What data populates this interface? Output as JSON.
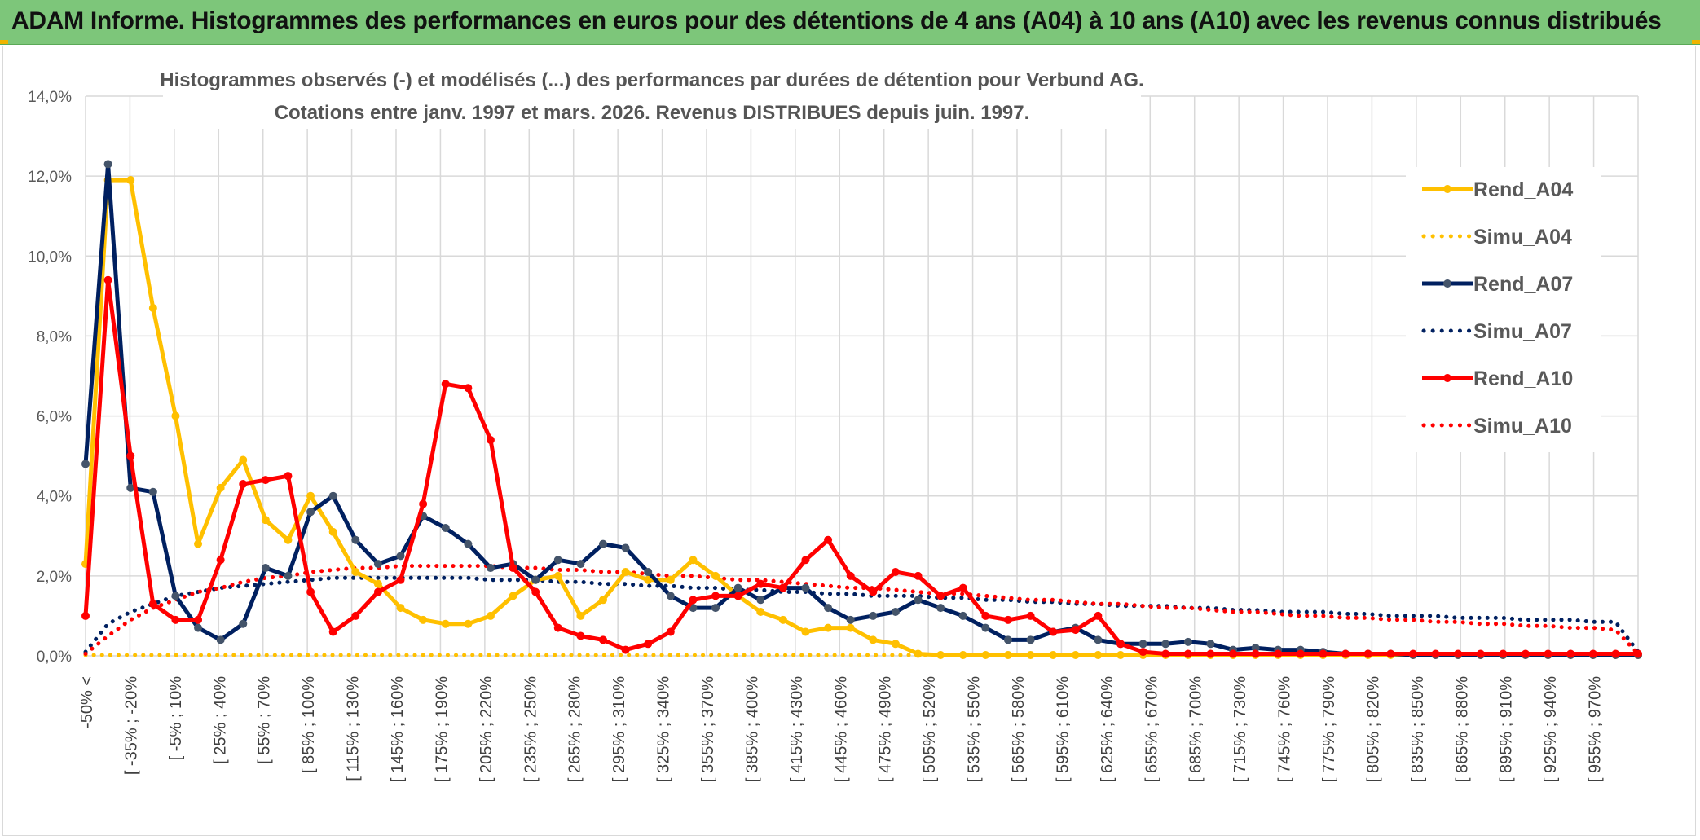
{
  "header": {
    "title": "ADAM Informe. Histogrammes des performances en euros pour des détentions de 4 ans (A04) à 10 ans (A10) avec les revenus connus distribués"
  },
  "chart_data": {
    "type": "line",
    "title": "Histogrammes observés (-) et modélisés (...) des performances par durées de détention pour Verbund AG.",
    "subtitle": "Cotations entre janv. 1997 et mars. 2026. Revenus DISTRIBUES depuis juin. 1997.",
    "xlabel": "",
    "ylabel": "",
    "ylim": [
      0,
      14
    ],
    "y_ticks": [
      "0,0%",
      "2,0%",
      "4,0%",
      "6,0%",
      "8,0%",
      "10,0%",
      "12,0%",
      "14,0%"
    ],
    "x_tick_labels": [
      "-50% <",
      "[ -35% ; -20%",
      "[ -5% ; 10%",
      "[ 25% ; 40%",
      "[ 55% ; 70%",
      "[ 85% ; 100%",
      "[ 115% ; 130%",
      "[ 145% ; 160%",
      "[ 175% ; 190%",
      "[ 205% ; 220%",
      "[ 235% ; 250%",
      "[ 265% ; 280%",
      "[ 295% ; 310%",
      "[ 325% ; 340%",
      "[ 355% ; 370%",
      "[ 385% ; 400%",
      "[ 415% ; 430%",
      "[ 445% ; 460%",
      "[ 475% ; 490%",
      "[ 505% ; 520%",
      "[ 535% ; 550%",
      "[ 565% ; 580%",
      "[ 595% ; 610%",
      "[ 625% ; 640%",
      "[ 655% ; 670%",
      "[ 685% ; 700%",
      "[ 715% ; 730%",
      "[ 745% ; 760%",
      "[ 775% ; 790%",
      "[ 805% ; 820%",
      "[ 835% ; 850%",
      "[ 865% ; 880%",
      "[ 895% ; 910%",
      "[ 925% ; 940%",
      "[ 955% ; 970%"
    ],
    "legend_position": "right",
    "series": [
      {
        "name": "Rend_A04",
        "style": "solid",
        "color": "#ffc000",
        "values": [
          2.3,
          11.9,
          11.9,
          8.7,
          6.0,
          2.8,
          4.2,
          4.9,
          3.4,
          2.9,
          4.0,
          3.1,
          2.1,
          1.8,
          1.2,
          0.9,
          0.8,
          0.8,
          1.0,
          1.5,
          1.9,
          2.0,
          1.0,
          1.4,
          2.1,
          1.9,
          1.9,
          2.4,
          2.0,
          1.5,
          1.1,
          0.9,
          0.6,
          0.7,
          0.7,
          0.4,
          0.3,
          0.05,
          0.02,
          0.02,
          0.02,
          0.02,
          0.02,
          0.02,
          0.02,
          0.02,
          0.02,
          0.02,
          0.02,
          0.02,
          0.02,
          0.02,
          0.02,
          0.02,
          0.02,
          0.02,
          0.02,
          0.02,
          0.02,
          0.02,
          0.02,
          0.02,
          0.02,
          0.02,
          0.02,
          0.02,
          0.02,
          0.02,
          0.02,
          0.02
        ]
      },
      {
        "name": "Simu_A04",
        "style": "dotted",
        "color": "#ffc000",
        "values": [
          0.02,
          0.02,
          0.02,
          0.02,
          0.02,
          0.02,
          0.02,
          0.02,
          0.02,
          0.02,
          0.02,
          0.02,
          0.02,
          0.02,
          0.02,
          0.02,
          0.02,
          0.02,
          0.02,
          0.02,
          0.02,
          0.02,
          0.02,
          0.02,
          0.02,
          0.02,
          0.02,
          0.02,
          0.02,
          0.02,
          0.02,
          0.02,
          0.02,
          0.02,
          0.02,
          0.02,
          0.02,
          0.02,
          0.02,
          0.02,
          0.02,
          0.02,
          0.02,
          0.02,
          0.02,
          0.02,
          0.02,
          0.02,
          0.02,
          0.02,
          0.02,
          0.02,
          0.02,
          0.02,
          0.02,
          0.02,
          0.02,
          0.02,
          0.02,
          0.02,
          0.02,
          0.02,
          0.02,
          0.02,
          0.02,
          0.02,
          0.02,
          0.02,
          0.02,
          0.02
        ]
      },
      {
        "name": "Rend_A07",
        "style": "solid",
        "color": "#002060",
        "values": [
          4.8,
          12.3,
          4.2,
          4.1,
          1.5,
          0.7,
          0.4,
          0.8,
          2.2,
          2.0,
          3.6,
          4.0,
          2.9,
          2.3,
          2.5,
          3.5,
          3.2,
          2.8,
          2.2,
          2.3,
          1.9,
          2.4,
          2.3,
          2.8,
          2.7,
          2.1,
          1.5,
          1.2,
          1.2,
          1.7,
          1.4,
          1.7,
          1.7,
          1.2,
          0.9,
          1.0,
          1.1,
          1.4,
          1.2,
          1.0,
          0.7,
          0.4,
          0.4,
          0.6,
          0.7,
          0.4,
          0.3,
          0.3,
          0.3,
          0.35,
          0.3,
          0.15,
          0.2,
          0.15,
          0.15,
          0.1,
          0.05,
          0.05,
          0.05,
          0.02,
          0.02,
          0.02,
          0.02,
          0.02,
          0.02,
          0.02,
          0.02,
          0.02,
          0.02,
          0.02
        ]
      },
      {
        "name": "Simu_A07",
        "style": "dotted",
        "color": "#002060",
        "values": [
          0.1,
          0.8,
          1.1,
          1.3,
          1.5,
          1.6,
          1.7,
          1.75,
          1.8,
          1.85,
          1.9,
          1.95,
          1.95,
          1.95,
          1.95,
          1.95,
          1.95,
          1.95,
          1.9,
          1.9,
          1.9,
          1.85,
          1.85,
          1.8,
          1.8,
          1.75,
          1.75,
          1.7,
          1.7,
          1.65,
          1.65,
          1.6,
          1.6,
          1.55,
          1.55,
          1.5,
          1.5,
          1.5,
          1.45,
          1.45,
          1.4,
          1.4,
          1.35,
          1.35,
          1.3,
          1.3,
          1.25,
          1.25,
          1.25,
          1.2,
          1.2,
          1.15,
          1.15,
          1.1,
          1.1,
          1.1,
          1.05,
          1.05,
          1.0,
          1.0,
          1.0,
          0.95,
          0.95,
          0.95,
          0.9,
          0.9,
          0.9,
          0.85,
          0.85,
          0.1
        ]
      },
      {
        "name": "Rend_A10",
        "style": "solid",
        "color": "#ff0000",
        "values": [
          1.0,
          9.4,
          5.0,
          1.3,
          0.9,
          0.9,
          2.4,
          4.3,
          4.4,
          4.5,
          1.6,
          0.6,
          1.0,
          1.6,
          1.9,
          3.8,
          6.8,
          6.7,
          5.4,
          2.2,
          1.6,
          0.7,
          0.5,
          0.4,
          0.15,
          0.3,
          0.6,
          1.4,
          1.5,
          1.5,
          1.8,
          1.7,
          2.4,
          2.9,
          2.0,
          1.6,
          2.1,
          2.0,
          1.5,
          1.7,
          1.0,
          0.9,
          1.0,
          0.6,
          0.65,
          1.0,
          0.3,
          0.1,
          0.05,
          0.05,
          0.05,
          0.05,
          0.05,
          0.05,
          0.05,
          0.05,
          0.05,
          0.05,
          0.05,
          0.05,
          0.05,
          0.05,
          0.05,
          0.05,
          0.05,
          0.05,
          0.05,
          0.05,
          0.05,
          0.05
        ]
      },
      {
        "name": "Simu_A10",
        "style": "dotted",
        "color": "#ff0000",
        "values": [
          0.05,
          0.5,
          0.9,
          1.2,
          1.4,
          1.6,
          1.7,
          1.85,
          1.95,
          2.0,
          2.1,
          2.15,
          2.2,
          2.2,
          2.25,
          2.25,
          2.25,
          2.25,
          2.25,
          2.2,
          2.2,
          2.15,
          2.15,
          2.1,
          2.1,
          2.05,
          2.0,
          2.0,
          1.95,
          1.9,
          1.9,
          1.85,
          1.8,
          1.75,
          1.7,
          1.7,
          1.65,
          1.6,
          1.55,
          1.55,
          1.5,
          1.45,
          1.4,
          1.4,
          1.35,
          1.3,
          1.3,
          1.25,
          1.2,
          1.2,
          1.15,
          1.1,
          1.1,
          1.05,
          1.0,
          1.0,
          0.95,
          0.95,
          0.9,
          0.9,
          0.85,
          0.85,
          0.8,
          0.8,
          0.75,
          0.75,
          0.7,
          0.7,
          0.65,
          0.05
        ]
      }
    ]
  }
}
